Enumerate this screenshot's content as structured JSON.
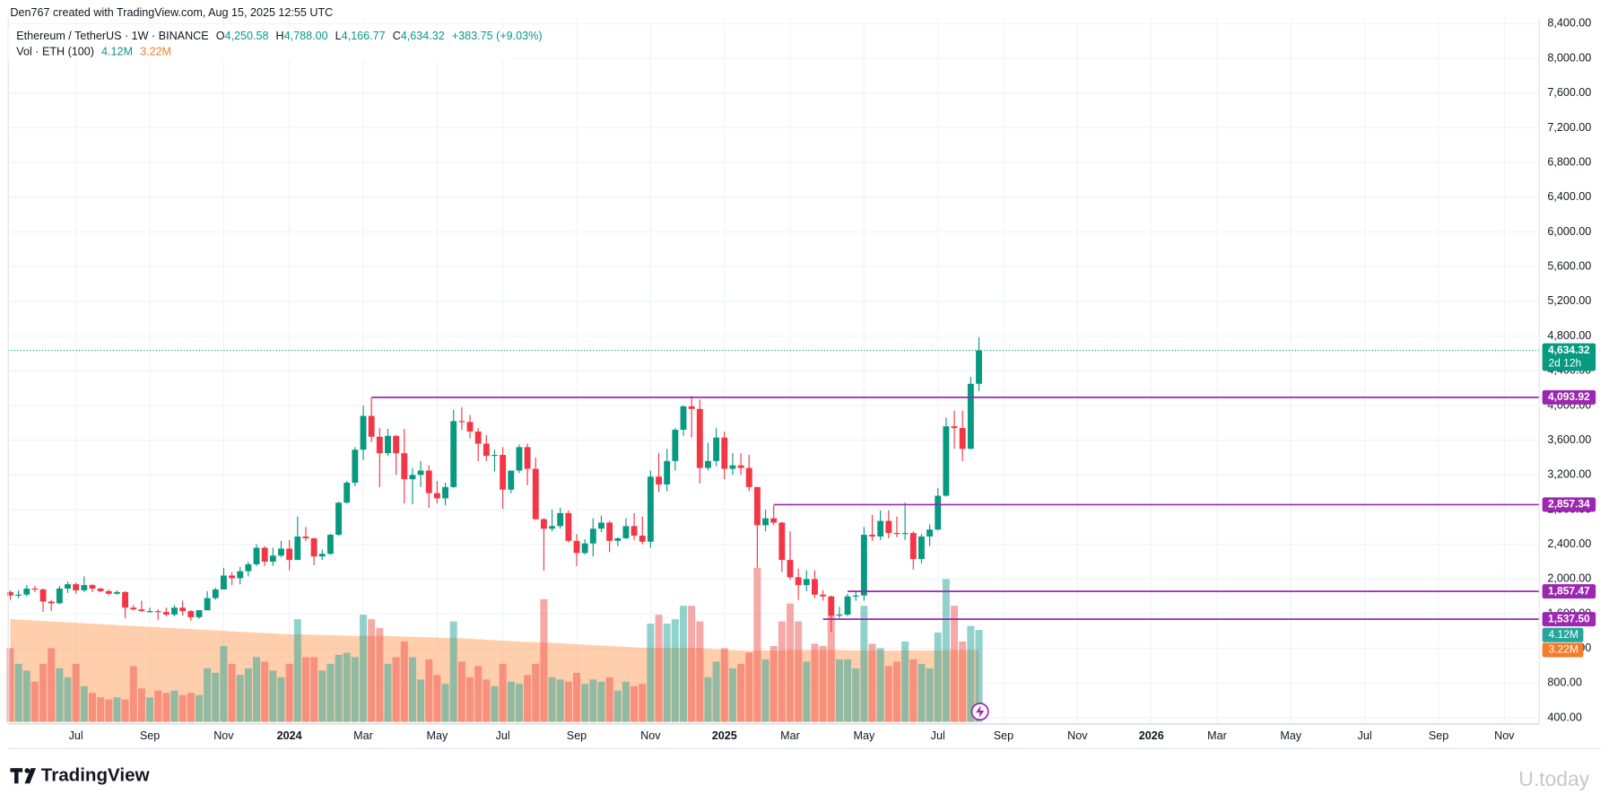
{
  "header": {
    "credit": "Den767 created with TradingView.com, Aug 15, 2025 12:55 UTC",
    "symbol": "Ethereum / TetherUS · 1W · BINANCE",
    "ohlc": [
      {
        "label": "O",
        "value": "4,250.58"
      },
      {
        "label": "H",
        "value": "4,788.00"
      },
      {
        "label": "L",
        "value": "4,166.77"
      },
      {
        "label": "C",
        "value": "4,634.32"
      }
    ],
    "change": "+383.75 (+9.03%)",
    "volume_title": "Vol · ETH (100)",
    "volume_value": "4.12M",
    "volume_ma_value": "3.22M"
  },
  "footer": {
    "brand": "TradingView",
    "watermark": "U.today"
  },
  "chart_data": {
    "type": "candlestick",
    "xlim": [
      -0.25,
      186.25
    ],
    "xticks": [
      {
        "value": 8,
        "label": "Jul"
      },
      {
        "value": 17,
        "label": "Sep"
      },
      {
        "value": 26,
        "label": "Nov"
      },
      {
        "value": 34,
        "label": "2024"
      },
      {
        "value": 43,
        "label": "Mar"
      },
      {
        "value": 52,
        "label": "May"
      },
      {
        "value": 60,
        "label": "Jul"
      },
      {
        "value": 69,
        "label": "Sep"
      },
      {
        "value": 78,
        "label": "Nov"
      },
      {
        "value": 87,
        "label": "2025"
      },
      {
        "value": 95,
        "label": "Mar"
      },
      {
        "value": 104,
        "label": "May"
      },
      {
        "value": 113,
        "label": "Jul"
      },
      {
        "value": 121,
        "label": "Sep"
      },
      {
        "value": 130,
        "label": "Nov"
      },
      {
        "value": 139,
        "label": "2026"
      },
      {
        "value": 147,
        "label": "Mar"
      },
      {
        "value": 156,
        "label": "May"
      },
      {
        "value": 165,
        "label": "Jul"
      },
      {
        "value": 174,
        "label": "Sep"
      },
      {
        "value": 182,
        "label": "Nov"
      }
    ],
    "ylim": [
      330,
      8460
    ],
    "yticks": [
      {
        "value": 400,
        "label": "400.00"
      },
      {
        "value": 800,
        "label": "800.00"
      },
      {
        "value": 1200,
        "label": "1,200.00"
      },
      {
        "value": 1600,
        "label": "1,600.00"
      },
      {
        "value": 2000,
        "label": "2,000.00"
      },
      {
        "value": 2400,
        "label": "2,400.00"
      },
      {
        "value": 2800,
        "label": "2,800.00"
      },
      {
        "value": 3200,
        "label": "3,200.00"
      },
      {
        "value": 3600,
        "label": "3,600.00"
      },
      {
        "value": 4000,
        "label": "4,000.00"
      },
      {
        "value": 4400,
        "label": "4,400.00"
      },
      {
        "value": 4800,
        "label": "4,800.00"
      },
      {
        "value": 5200,
        "label": "5,200.00"
      },
      {
        "value": 5600,
        "label": "5,600.00"
      },
      {
        "value": 6000,
        "label": "6,000.00"
      },
      {
        "value": 6400,
        "label": "6,400.00"
      },
      {
        "value": 6800,
        "label": "6,800.00"
      },
      {
        "value": 7200,
        "label": "7,200.00"
      },
      {
        "value": 7600,
        "label": "7,600.00"
      },
      {
        "value": 8000,
        "label": "8,000.00"
      },
      {
        "value": 8400,
        "label": "8,400.00"
      }
    ],
    "grid": true,
    "candles": {
      "up_color": "#089981",
      "down_color": "#f23645",
      "ohlc": [
        [
          1850,
          1870,
          1760,
          1810
        ],
        [
          1810,
          1870,
          1780,
          1820
        ],
        [
          1820,
          1930,
          1800,
          1890
        ],
        [
          1890,
          1920,
          1850,
          1880
        ],
        [
          1880,
          1890,
          1620,
          1740
        ],
        [
          1740,
          1760,
          1630,
          1720
        ],
        [
          1720,
          1920,
          1710,
          1890
        ],
        [
          1890,
          1970,
          1840,
          1940
        ],
        [
          1940,
          1960,
          1830,
          1870
        ],
        [
          1870,
          2030,
          1850,
          1930
        ],
        [
          1930,
          1940,
          1850,
          1890
        ],
        [
          1890,
          1900,
          1850,
          1860
        ],
        [
          1860,
          1880,
          1810,
          1830
        ],
        [
          1830,
          1870,
          1820,
          1850
        ],
        [
          1850,
          1860,
          1550,
          1670
        ],
        [
          1670,
          1700,
          1640,
          1650
        ],
        [
          1650,
          1750,
          1620,
          1630
        ],
        [
          1630,
          1670,
          1610,
          1630
        ],
        [
          1630,
          1650,
          1530,
          1620
        ],
        [
          1620,
          1670,
          1570,
          1590
        ],
        [
          1590,
          1700,
          1570,
          1670
        ],
        [
          1670,
          1750,
          1580,
          1630
        ],
        [
          1630,
          1640,
          1520,
          1560
        ],
        [
          1560,
          1640,
          1540,
          1640
        ],
        [
          1640,
          1860,
          1640,
          1780
        ],
        [
          1780,
          1900,
          1760,
          1880
        ],
        [
          1880,
          2130,
          1880,
          2040
        ],
        [
          2040,
          2080,
          1930,
          2010
        ],
        [
          2010,
          2140,
          1940,
          2090
        ],
        [
          2090,
          2200,
          2030,
          2170
        ],
        [
          2170,
          2400,
          2150,
          2360
        ],
        [
          2360,
          2380,
          2150,
          2200
        ],
        [
          2200,
          2360,
          2150,
          2270
        ],
        [
          2270,
          2440,
          2250,
          2350
        ],
        [
          2350,
          2450,
          2100,
          2220
        ],
        [
          2220,
          2720,
          2220,
          2490
        ],
        [
          2490,
          2600,
          2440,
          2470
        ],
        [
          2470,
          2470,
          2160,
          2260
        ],
        [
          2260,
          2340,
          2220,
          2290
        ],
        [
          2290,
          2520,
          2280,
          2510
        ],
        [
          2510,
          2890,
          2500,
          2880
        ],
        [
          2880,
          3130,
          2870,
          3110
        ],
        [
          3110,
          3520,
          3070,
          3490
        ],
        [
          3490,
          4000,
          3370,
          3880
        ],
        [
          3880,
          4090,
          3580,
          3640
        ],
        [
          3640,
          3740,
          3060,
          3450
        ],
        [
          3450,
          3730,
          3420,
          3650
        ],
        [
          3650,
          3660,
          3200,
          3450
        ],
        [
          3450,
          3730,
          2870,
          3150
        ],
        [
          3150,
          3280,
          2860,
          3200
        ],
        [
          3200,
          3360,
          3060,
          3250
        ],
        [
          3250,
          3310,
          2820,
          2990
        ],
        [
          2990,
          3130,
          2870,
          2930
        ],
        [
          2930,
          3110,
          2850,
          3060
        ],
        [
          3060,
          3950,
          3050,
          3820
        ],
        [
          3820,
          3980,
          3720,
          3810
        ],
        [
          3810,
          3890,
          3620,
          3700
        ],
        [
          3700,
          3740,
          3360,
          3560
        ],
        [
          3560,
          3660,
          3360,
          3420
        ],
        [
          3420,
          3490,
          3240,
          3430
        ],
        [
          3430,
          3520,
          2810,
          3030
        ],
        [
          3030,
          3250,
          2990,
          3250
        ],
        [
          3250,
          3550,
          3220,
          3520
        ],
        [
          3520,
          3560,
          3080,
          3270
        ],
        [
          3270,
          3400,
          2680,
          2690
        ],
        [
          2690,
          2700,
          2100,
          2580
        ],
        [
          2580,
          2800,
          2550,
          2610
        ],
        [
          2610,
          2820,
          2580,
          2760
        ],
        [
          2760,
          2790,
          2420,
          2440
        ],
        [
          2440,
          2520,
          2150,
          2300
        ],
        [
          2300,
          2460,
          2280,
          2410
        ],
        [
          2410,
          2700,
          2260,
          2580
        ],
        [
          2580,
          2730,
          2540,
          2650
        ],
        [
          2650,
          2670,
          2310,
          2440
        ],
        [
          2440,
          2480,
          2380,
          2470
        ],
        [
          2470,
          2700,
          2460,
          2610
        ],
        [
          2610,
          2760,
          2450,
          2500
        ],
        [
          2500,
          2720,
          2400,
          2430
        ],
        [
          2430,
          3250,
          2360,
          3180
        ],
        [
          3180,
          3450,
          3000,
          3090
        ],
        [
          3090,
          3500,
          3010,
          3360
        ],
        [
          3360,
          3740,
          3250,
          3720
        ],
        [
          3720,
          4000,
          3650,
          3990
        ],
        [
          3990,
          4110,
          3630,
          3960
        ],
        [
          3960,
          4070,
          3100,
          3280
        ],
        [
          3280,
          3570,
          3250,
          3360
        ],
        [
          3360,
          3740,
          3300,
          3630
        ],
        [
          3630,
          3700,
          3150,
          3270
        ],
        [
          3270,
          3450,
          3200,
          3310
        ],
        [
          3310,
          3450,
          3200,
          3280
        ],
        [
          3280,
          3430,
          3010,
          3060
        ],
        [
          3060,
          3060,
          2130,
          2620
        ],
        [
          2620,
          2800,
          2550,
          2700
        ],
        [
          2700,
          2850,
          2620,
          2650
        ],
        [
          2650,
          2660,
          2080,
          2220
        ],
        [
          2220,
          2550,
          1990,
          2020
        ],
        [
          2020,
          2120,
          1760,
          1930
        ],
        [
          1930,
          2100,
          1860,
          2000
        ],
        [
          2000,
          2100,
          1780,
          1820
        ],
        [
          1820,
          1870,
          1750,
          1800
        ],
        [
          1800,
          1810,
          1390,
          1580
        ],
        [
          1580,
          1680,
          1550,
          1590
        ],
        [
          1590,
          1830,
          1570,
          1800
        ],
        [
          1800,
          1870,
          1750,
          1810
        ],
        [
          1810,
          2600,
          1750,
          2510
        ],
        [
          2510,
          2740,
          2440,
          2490
        ],
        [
          2490,
          2790,
          2450,
          2670
        ],
        [
          2670,
          2790,
          2470,
          2530
        ],
        [
          2530,
          2720,
          2480,
          2520
        ],
        [
          2520,
          2880,
          2450,
          2530
        ],
        [
          2530,
          2550,
          2110,
          2230
        ],
        [
          2230,
          2520,
          2180,
          2490
        ],
        [
          2490,
          2630,
          2380,
          2570
        ],
        [
          2570,
          3050,
          2560,
          2960
        ],
        [
          2960,
          3860,
          2950,
          3760
        ],
        [
          3760,
          3940,
          3500,
          3740
        ],
        [
          3740,
          3940,
          3360,
          3500
        ],
        [
          3500,
          4330,
          3500,
          4250
        ],
        [
          4250.58,
          4788,
          4166.77,
          4634.32
        ]
      ]
    },
    "volume": {
      "up_color": "#26a69a",
      "down_color": "#ef5350",
      "ma_color": "#ff9e5a",
      "values": [
        3300000,
        2600000,
        2300000,
        1800000,
        2600000,
        3300000,
        2400000,
        2000000,
        2600000,
        1600000,
        1300000,
        1100000,
        1000000,
        1100000,
        1000000,
        2500000,
        1500000,
        1100000,
        1400000,
        1300000,
        1400000,
        1200000,
        1300000,
        1200000,
        2400000,
        2200000,
        3400000,
        2600000,
        2100000,
        2400000,
        2900000,
        2700000,
        2300000,
        2000000,
        2600000,
        4600000,
        2900000,
        2900000,
        2300000,
        2600000,
        3000000,
        3100000,
        2900000,
        4800000,
        4600000,
        4200000,
        2600000,
        2900000,
        3600000,
        2900000,
        1900000,
        2800000,
        2100000,
        1700000,
        4500000,
        2700000,
        2000000,
        2500000,
        1900000,
        1600000,
        2600000,
        1800000,
        1700000,
        2100000,
        2600000,
        5500000,
        2000000,
        1900000,
        1800000,
        2200000,
        1700000,
        1900000,
        1800000,
        2000000,
        1400000,
        1800000,
        1600000,
        1700000,
        4400000,
        4800000,
        4400000,
        4600000,
        5200000,
        5200000,
        4500000,
        2000000,
        2700000,
        3300000,
        2400000,
        2600000,
        3100000,
        6900000,
        2800000,
        3400000,
        4500000,
        5300000,
        4500000,
        2700000,
        3500000,
        3400000,
        4800000,
        2800000,
        2800000,
        2400000,
        5200000,
        3500000,
        3300000,
        2500000,
        2700000,
        3600000,
        2800000,
        2600000,
        2400000,
        4000000,
        6400000,
        5200000,
        3600000,
        4300000,
        4120000
      ],
      "value_labels": {
        "118": "4.12M"
      },
      "ma": [
        4600000,
        4580000,
        4560000,
        4540000,
        4520000,
        4500000,
        4480000,
        4460000,
        4440000,
        4420000,
        4400000,
        4380000,
        4360000,
        4340000,
        4320000,
        4300000,
        4280000,
        4260000,
        4240000,
        4220000,
        4200000,
        4180000,
        4160000,
        4140000,
        4120000,
        4100000,
        4080000,
        4060000,
        4040000,
        4020000,
        4000000,
        3980000,
        3960000,
        3940000,
        3920000,
        3920000,
        3910000,
        3900000,
        3890000,
        3880000,
        3870000,
        3860000,
        3850000,
        3860000,
        3860000,
        3850000,
        3840000,
        3830000,
        3820000,
        3810000,
        3800000,
        3790000,
        3780000,
        3760000,
        3760000,
        3740000,
        3720000,
        3700000,
        3680000,
        3660000,
        3640000,
        3620000,
        3600000,
        3580000,
        3560000,
        3560000,
        3540000,
        3520000,
        3500000,
        3480000,
        3460000,
        3440000,
        3420000,
        3400000,
        3380000,
        3360000,
        3340000,
        3320000,
        3320000,
        3320000,
        3320000,
        3320000,
        3320000,
        3320000,
        3300000,
        3280000,
        3260000,
        3240000,
        3220000,
        3200000,
        3180000,
        3200000,
        3200000,
        3200000,
        3210000,
        3220000,
        3220000,
        3220000,
        3220000,
        3220000,
        3230000,
        3220000,
        3210000,
        3200000,
        3200000,
        3200000,
        3200000,
        3190000,
        3190000,
        3200000,
        3200000,
        3190000,
        3190000,
        3200000,
        3210000,
        3220000,
        3220000,
        3220000,
        3220000
      ],
      "ma_labels": {
        "118": "3.22M"
      }
    },
    "levels": [
      {
        "value": 4093.92,
        "label": "4,093.92",
        "x_start": 44
      },
      {
        "value": 2857.34,
        "label": "2,857.34",
        "x_start": 93
      },
      {
        "value": 1857.47,
        "label": "1,857.47",
        "x_start": 102
      },
      {
        "value": 1537.5,
        "label": "1,537.50",
        "x_start": 99
      }
    ],
    "level_color": "#9c27b0",
    "last_price": {
      "value": 4634.32,
      "label": "4,634.32",
      "countdown": "2d 12h",
      "color": "#089981"
    }
  }
}
